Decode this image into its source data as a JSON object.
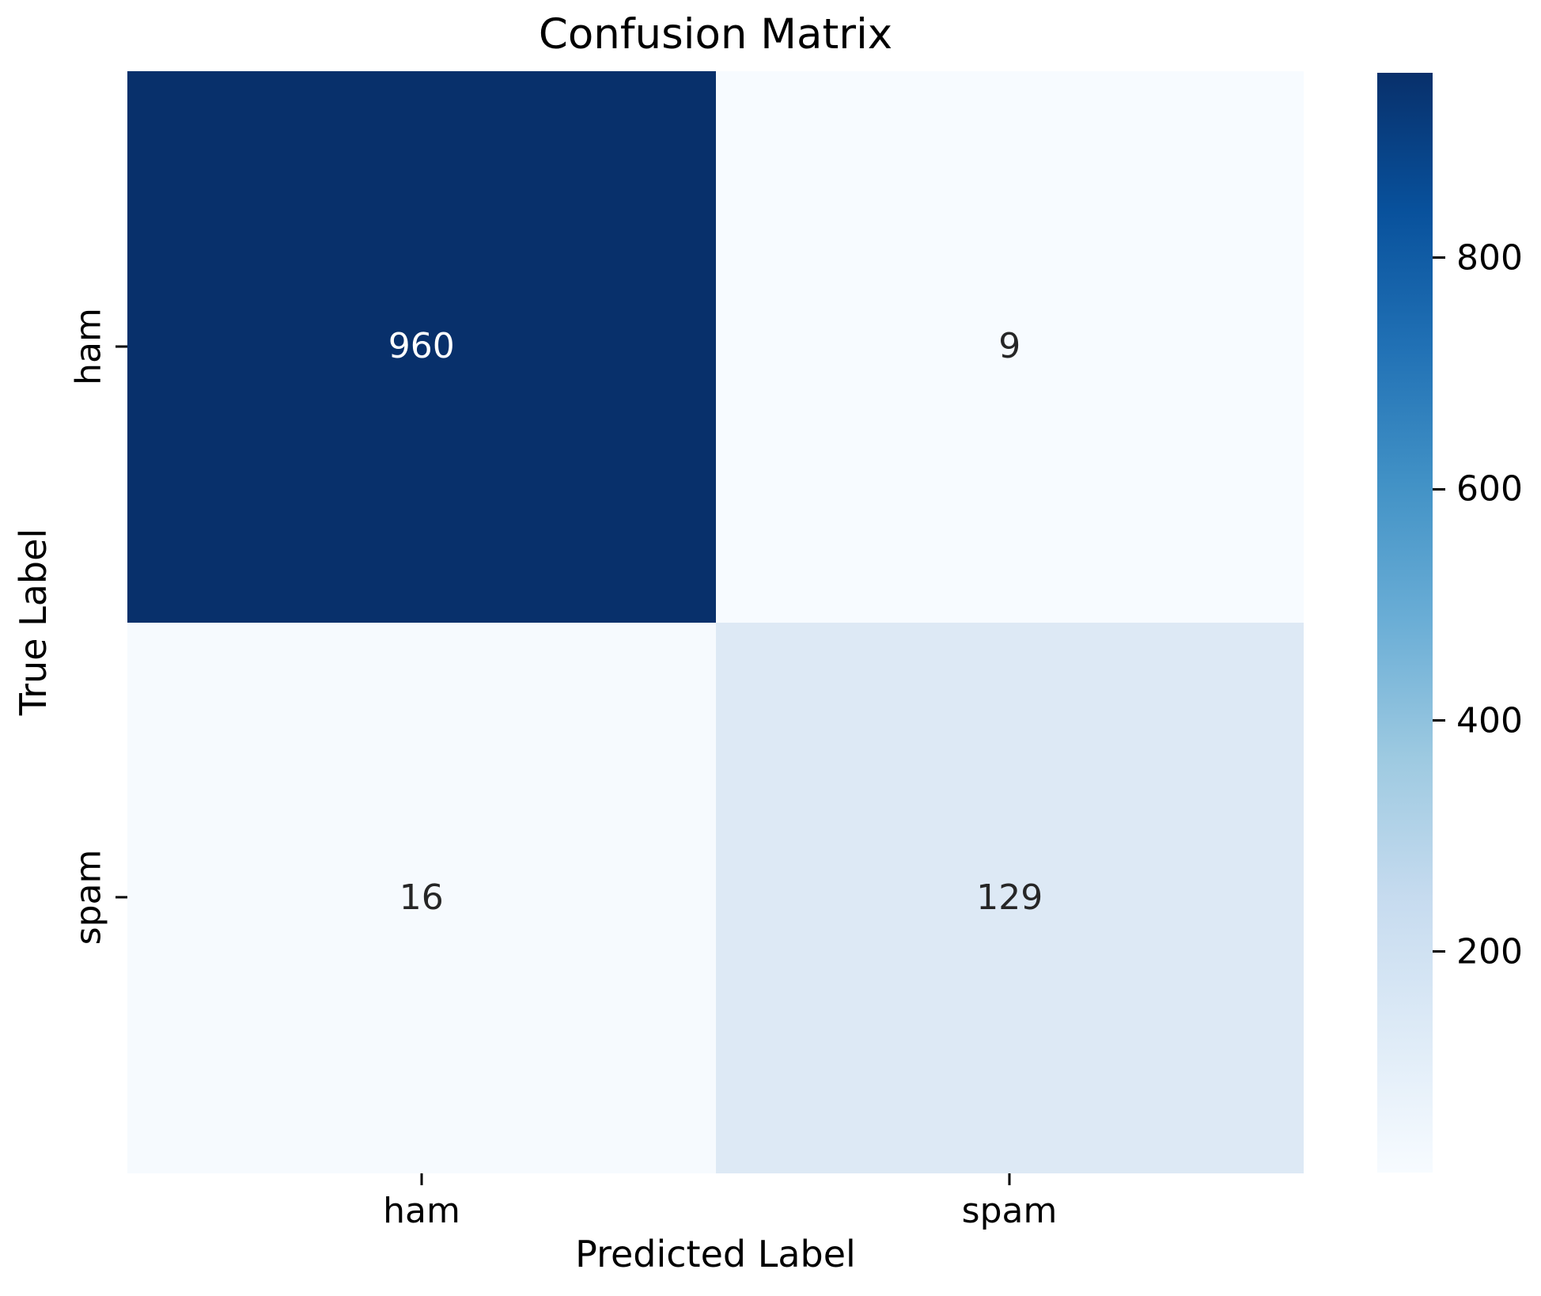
{
  "title": "Confusion Matrix",
  "chart_data": {
    "type": "heatmap",
    "title": "Confusion Matrix",
    "xlabel": "Predicted Label",
    "ylabel": "True Label",
    "x_categories": [
      "ham",
      "spam"
    ],
    "y_categories": [
      "ham",
      "spam"
    ],
    "matrix": [
      [
        960,
        9
      ],
      [
        16,
        129
      ]
    ],
    "vmin": 9,
    "vmax": 960,
    "colormap": "Blues",
    "colorbar_ticks": [
      800,
      600,
      400,
      200
    ],
    "colorbar_position": "right",
    "grid": false,
    "annotations": [
      "960",
      "9",
      "16",
      "129"
    ]
  },
  "colors": {
    "background": "#ffffff",
    "tick_text": "#000000",
    "annotation_dark": "#262626",
    "annotation_light": "#ffffff",
    "cell_max": "#08306b",
    "cell_min": "#f7fbff"
  },
  "cells": [
    {
      "value": "960",
      "bg": "#08306b",
      "fg": "#ffffff"
    },
    {
      "value": "9",
      "bg": "#f7fbff",
      "fg": "#262626"
    },
    {
      "value": "16",
      "bg": "#f6fafe",
      "fg": "#262626"
    },
    {
      "value": "129",
      "bg": "#dde9f5",
      "fg": "#262626"
    }
  ],
  "axes": {
    "x_label": "Predicted Label",
    "y_label": "True Label",
    "x_ticks": [
      "ham",
      "spam"
    ],
    "y_ticks": [
      "ham",
      "spam"
    ]
  },
  "colorbar": {
    "ticks": [
      {
        "label": "800",
        "top_pct": 16.83
      },
      {
        "label": "600",
        "top_pct": 37.86
      },
      {
        "label": "400",
        "top_pct": 58.89
      },
      {
        "label": "200",
        "top_pct": 79.92
      }
    ],
    "gradient_stops": [
      "#08306b",
      "#08519c",
      "#2171b5",
      "#4292c6",
      "#6baed6",
      "#9ecae1",
      "#c6dbef",
      "#deebf7",
      "#f7fbff"
    ]
  }
}
